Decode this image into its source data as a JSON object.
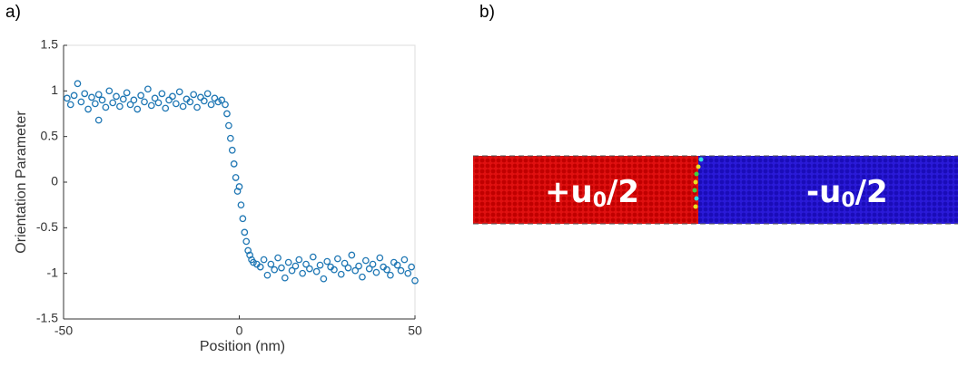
{
  "chart_data": {
    "type": "scatter",
    "panel_label": "a)",
    "x_label": "Position (nm)",
    "y_label": "Orientation Parameter",
    "xlim": [
      -50,
      50
    ],
    "ylim": [
      -1.5,
      1.5
    ],
    "xticks": [
      -50,
      0,
      50
    ],
    "yticks": [
      -1.5,
      -1,
      -0.5,
      0,
      0.5,
      1,
      1.5
    ],
    "grid": false,
    "series": [
      {
        "color": "#1f77b4",
        "x": [
          -49,
          -48,
          -47,
          -46,
          -45,
          -44,
          -43,
          -42,
          -41,
          -40,
          -40,
          -39,
          -38,
          -37,
          -36,
          -35,
          -34,
          -33,
          -32,
          -31,
          -30,
          -29,
          -28,
          -27,
          -26,
          -25,
          -24,
          -23,
          -22,
          -21,
          -20,
          -19,
          -18,
          -17,
          -16,
          -15,
          -14,
          -13,
          -12,
          -11,
          -10,
          -9,
          -8,
          -7,
          -6,
          -5,
          -4,
          -3.5,
          -3,
          -2.5,
          -2,
          -1.5,
          -1,
          -0.5,
          0,
          0.5,
          1,
          1.5,
          2,
          2.5,
          3,
          3.5,
          4,
          5,
          6,
          7,
          8,
          9,
          10,
          11,
          12,
          13,
          14,
          15,
          16,
          17,
          18,
          19,
          20,
          21,
          22,
          23,
          24,
          25,
          26,
          27,
          28,
          29,
          30,
          31,
          32,
          33,
          34,
          35,
          36,
          37,
          38,
          39,
          40,
          41,
          42,
          43,
          44,
          45,
          46,
          47,
          48,
          49,
          50
        ],
        "y": [
          0.92,
          0.85,
          0.95,
          1.08,
          0.88,
          0.97,
          0.8,
          0.93,
          0.86,
          0.68,
          0.96,
          0.9,
          0.82,
          1.0,
          0.87,
          0.94,
          0.83,
          0.91,
          0.98,
          0.85,
          0.9,
          0.8,
          0.95,
          0.88,
          1.02,
          0.84,
          0.92,
          0.87,
          0.97,
          0.81,
          0.9,
          0.94,
          0.86,
          0.99,
          0.83,
          0.91,
          0.88,
          0.96,
          0.82,
          0.93,
          0.89,
          0.97,
          0.85,
          0.92,
          0.88,
          0.9,
          0.85,
          0.75,
          0.62,
          0.48,
          0.35,
          0.2,
          0.05,
          -0.1,
          -0.05,
          -0.25,
          -0.4,
          -0.55,
          -0.65,
          -0.75,
          -0.8,
          -0.85,
          -0.88,
          -0.9,
          -0.93,
          -0.85,
          -1.02,
          -0.9,
          -0.96,
          -0.83,
          -0.94,
          -1.05,
          -0.88,
          -0.97,
          -0.92,
          -0.85,
          -1.0,
          -0.9,
          -0.95,
          -0.82,
          -0.98,
          -0.91,
          -1.06,
          -0.87,
          -0.93,
          -0.96,
          -0.84,
          -1.01,
          -0.89,
          -0.94,
          -0.8,
          -0.97,
          -0.92,
          -1.04,
          -0.86,
          -0.95,
          -0.9,
          -0.99,
          -0.83,
          -0.93,
          -0.96,
          -1.02,
          -0.88,
          -0.91,
          -0.97,
          -0.85,
          -1.0,
          -0.93,
          -1.08
        ]
      }
    ]
  },
  "panel_b": {
    "panel_label": "b)",
    "left_label": {
      "prefix": "+u",
      "sub": "0",
      "suffix": "/2"
    },
    "right_label": {
      "prefix": "-u",
      "sub": "0",
      "suffix": "/2"
    }
  }
}
